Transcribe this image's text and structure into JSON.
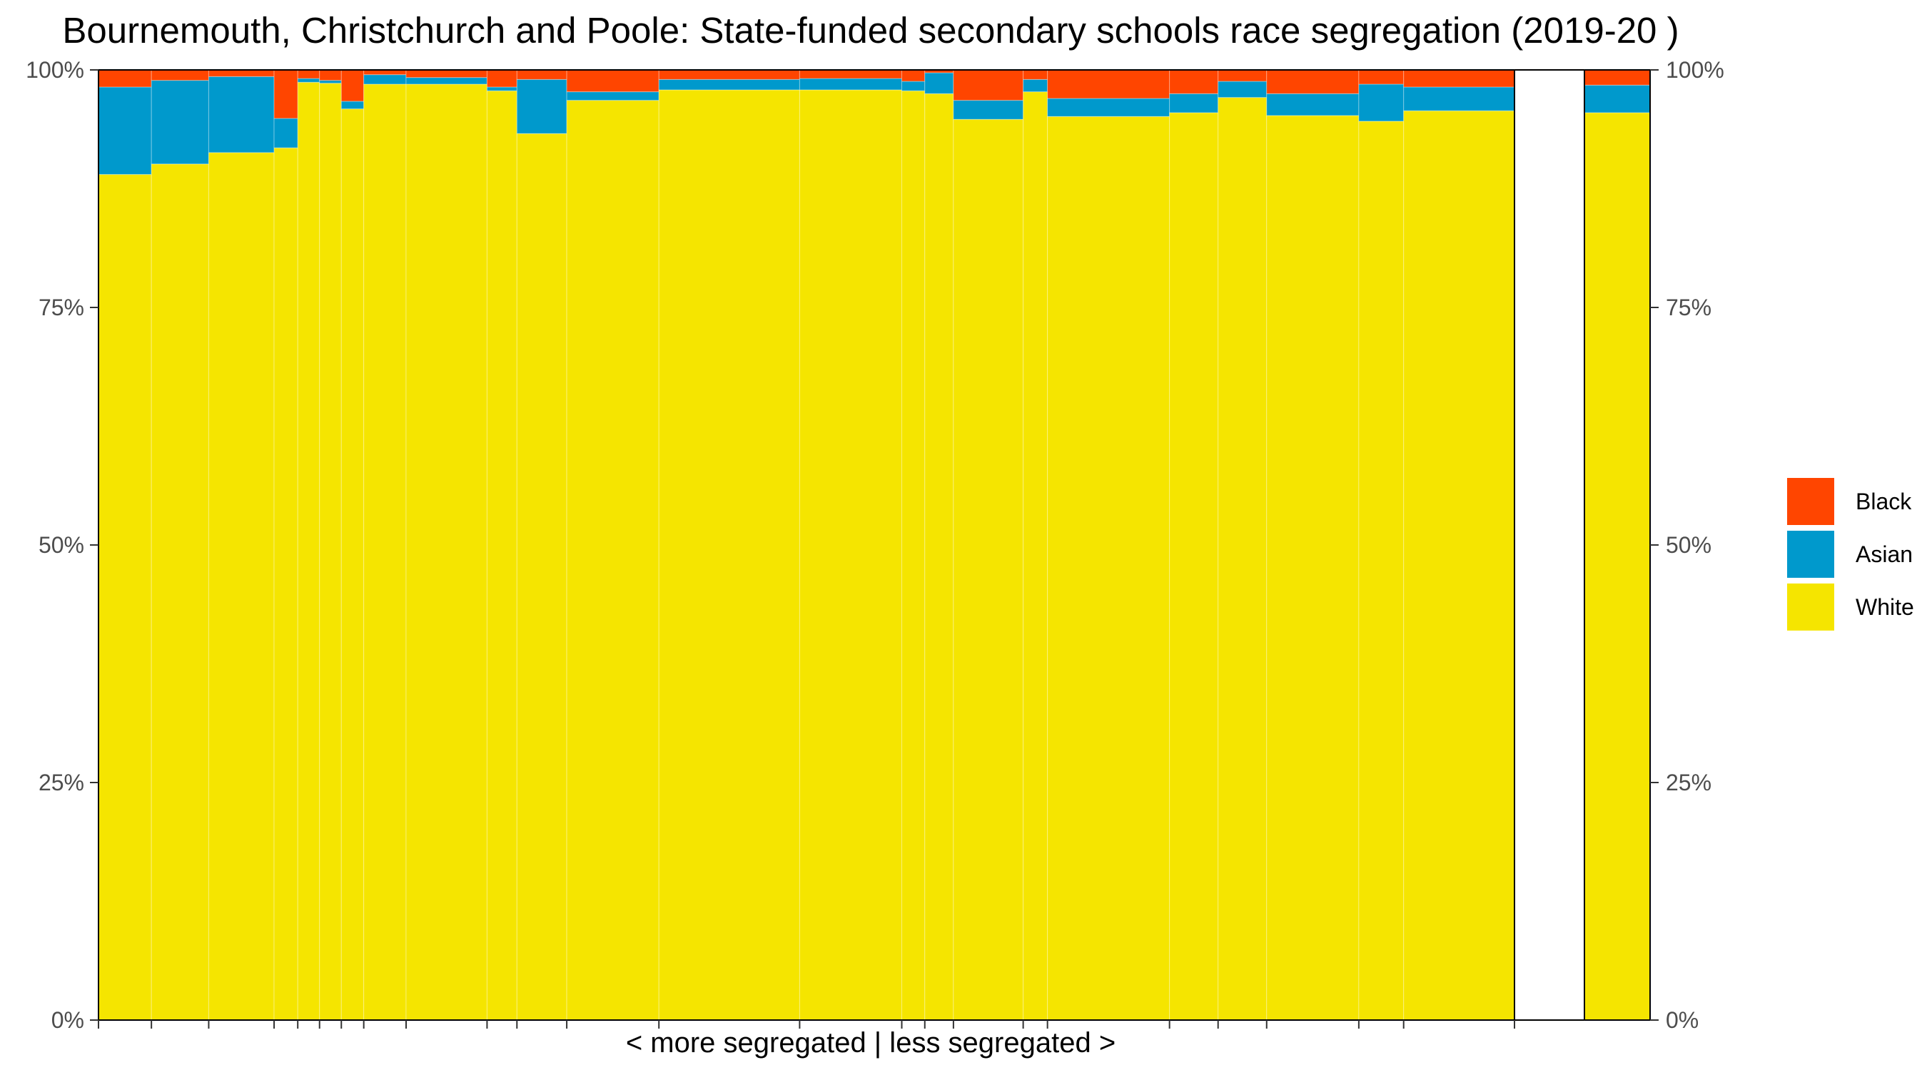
{
  "chart_data": {
    "type": "bar",
    "subtype": "stacked-variable-width-percent",
    "title": "Bournemouth, Christchurch and Poole: State-funded secondary schools race segregation (2019-20 )",
    "xlabel": "< more segregated | less segregated >",
    "ylabel": "",
    "ylim": [
      0,
      100
    ],
    "y_ticks": [
      "0%",
      "25%",
      "50%",
      "75%",
      "100%"
    ],
    "secondary_y_axis": true,
    "grid": false,
    "legend_position": "right",
    "colors": {
      "Black": "#ff4500",
      "Asian": "#0099cc",
      "White": "#f5e500"
    },
    "legend": [
      {
        "name": "Black",
        "color": "#ff4500"
      },
      {
        "name": "Asian",
        "color": "#0099cc"
      },
      {
        "name": "White",
        "color": "#f5e500"
      }
    ],
    "stack_order": [
      "White",
      "Asian",
      "Black"
    ],
    "bar_widths": [
      85,
      92,
      105,
      38,
      35,
      35,
      36,
      68,
      130,
      48,
      80,
      148,
      226,
      164,
      37,
      46,
      112,
      39,
      196,
      78,
      78,
      148,
      72,
      178
    ],
    "series": [
      {
        "name": "White",
        "values": [
          89.0,
          90.1,
          91.3,
          91.8,
          98.7,
          98.6,
          95.9,
          98.5,
          98.5,
          97.8,
          93.3,
          96.8,
          97.9,
          97.9,
          97.8,
          97.5,
          94.8,
          97.7,
          95.1,
          95.5,
          97.1,
          95.2,
          94.6,
          95.7
        ]
      },
      {
        "name": "Asian",
        "values": [
          9.2,
          8.8,
          8.0,
          3.1,
          0.4,
          0.3,
          0.8,
          1.0,
          0.7,
          0.4,
          5.7,
          0.9,
          1.1,
          1.2,
          1.0,
          2.2,
          2.0,
          1.3,
          1.9,
          2.0,
          1.7,
          2.3,
          3.9,
          2.5
        ]
      },
      {
        "name": "Black",
        "values": [
          1.8,
          1.1,
          0.7,
          5.1,
          0.9,
          1.1,
          3.3,
          0.5,
          0.8,
          1.8,
          1.0,
          2.3,
          1.0,
          0.9,
          1.2,
          0.3,
          3.2,
          1.0,
          3.0,
          2.5,
          1.2,
          2.5,
          1.5,
          1.8
        ]
      }
    ],
    "summary_bar": {
      "White": 95.5,
      "Asian": 2.9,
      "Black": 1.6
    }
  }
}
